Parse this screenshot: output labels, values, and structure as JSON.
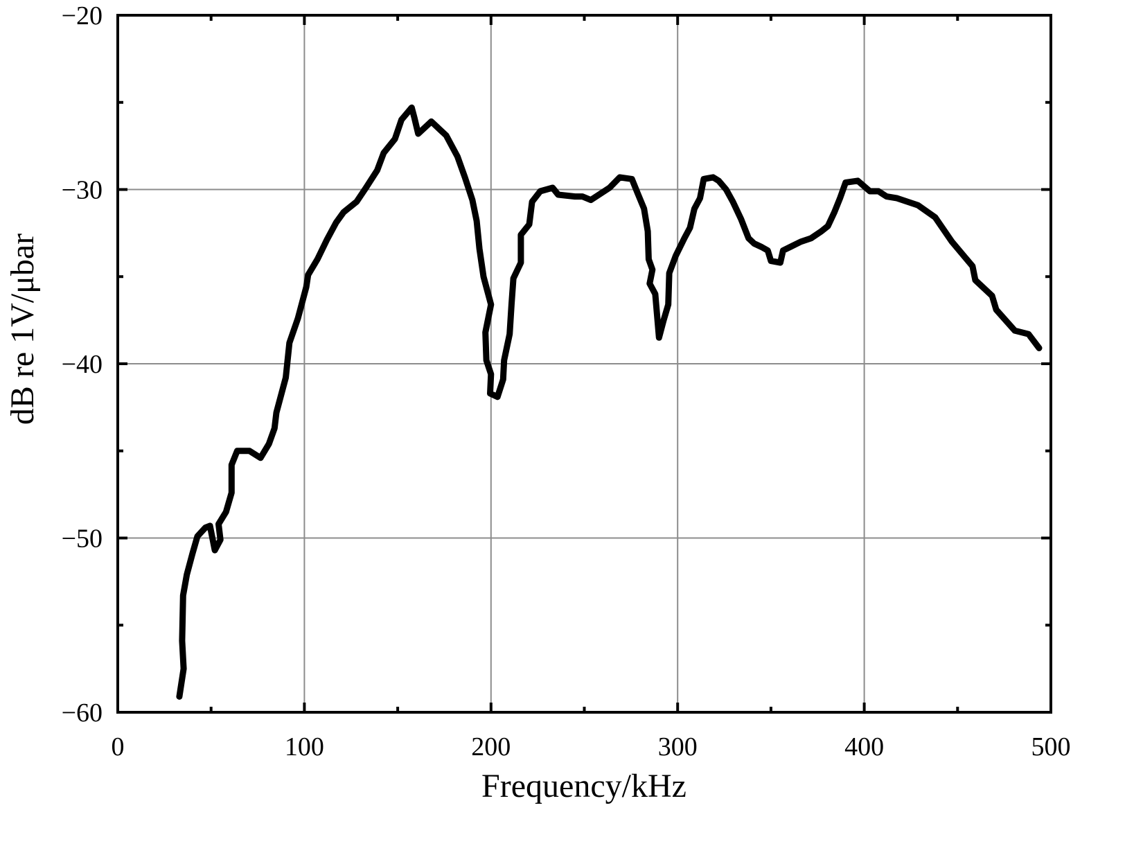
{
  "chart_data": {
    "type": "line",
    "xlabel": "Frequency/kHz",
    "ylabel": "dB re 1V/μbar",
    "xlim": [
      0,
      500
    ],
    "ylim": [
      -60,
      -20
    ],
    "xticks": [
      0,
      100,
      200,
      300,
      400,
      500
    ],
    "yticks": [
      {
        "value": -60,
        "label": "−60"
      },
      {
        "value": -50,
        "label": "−50"
      },
      {
        "value": -40,
        "label": "−40"
      },
      {
        "value": -30,
        "label": "−30"
      },
      {
        "value": -20,
        "label": "−20"
      }
    ],
    "xminorticks": [
      50,
      150,
      250,
      350,
      450
    ],
    "yminorticks": [
      -55,
      -45,
      -35,
      -25
    ],
    "grid": true,
    "color": "#000000",
    "x": [
      33,
      35.3,
      34.5,
      35,
      37,
      40,
      42.7,
      47,
      49.4,
      52,
      55,
      54,
      58,
      61,
      61,
      64,
      70.6,
      76.5,
      81,
      84,
      85,
      90,
      92,
      96.5,
      101,
      102,
      107,
      112,
      117,
      121,
      128,
      133,
      139,
      142.5,
      148.5,
      152,
      157.5,
      159,
      161,
      168,
      176,
      182,
      186,
      190,
      192.3,
      193.8,
      196,
      200,
      197,
      197.5,
      200,
      199.5,
      203.5,
      206.5,
      207,
      210,
      211,
      212,
      216,
      216,
      220.5,
      222,
      226.4,
      233,
      236,
      245,
      249,
      253.5,
      263.5,
      269,
      275.5,
      278.5,
      282,
      284,
      284.5,
      286.5,
      285,
      288,
      290,
      292.5,
      295,
      295.5,
      299,
      303.6,
      306.6,
      309,
      312,
      314,
      319,
      322,
      326,
      329.6,
      334,
      338,
      341,
      345,
      348.3,
      350,
      355,
      356.5,
      366,
      371.5,
      377,
      380.5,
      384,
      387,
      390,
      396.5,
      403,
      407.6,
      412,
      417.6,
      428.7,
      438,
      447,
      458,
      459.5,
      468.5,
      470.7,
      480.7,
      488,
      493.7
    ],
    "values": [
      -59.1,
      -57.5,
      -55.9,
      -53.3,
      -52.1,
      -50.9,
      -49.9,
      -49.4,
      -49.3,
      -50.7,
      -50.1,
      -49.2,
      -48.5,
      -47.4,
      -45.8,
      -45.0,
      -45.0,
      -45.4,
      -44.6,
      -43.7,
      -42.8,
      -40.8,
      -38.8,
      -37.4,
      -35.6,
      -34.9,
      -34.0,
      -32.9,
      -31.9,
      -31.3,
      -30.7,
      -29.9,
      -28.9,
      -27.9,
      -27.1,
      -26.0,
      -25.3,
      -25.9,
      -26.8,
      -26.1,
      -26.9,
      -28.1,
      -29.3,
      -30.6,
      -31.8,
      -33.4,
      -35.0,
      -36.6,
      -38.2,
      -39.8,
      -40.6,
      -41.7,
      -41.9,
      -40.9,
      -39.8,
      -38.3,
      -36.6,
      -35.1,
      -34.2,
      -32.6,
      -32.0,
      -30.7,
      -30.1,
      -29.9,
      -30.3,
      -30.4,
      -30.4,
      -30.6,
      -29.9,
      -29.3,
      -29.4,
      -30.2,
      -31.1,
      -32.4,
      -34.0,
      -34.6,
      -35.4,
      -36.0,
      -38.5,
      -37.5,
      -36.6,
      -34.8,
      -33.8,
      -32.8,
      -32.2,
      -31.1,
      -30.5,
      -29.4,
      -29.3,
      -29.5,
      -30.0,
      -30.7,
      -31.7,
      -32.8,
      -33.1,
      -33.3,
      -33.5,
      -34.1,
      -34.2,
      -33.5,
      -33.0,
      -32.8,
      -32.4,
      -32.1,
      -31.3,
      -30.5,
      -29.6,
      -29.5,
      -30.1,
      -30.1,
      -30.4,
      -30.5,
      -30.9,
      -31.6,
      -33.0,
      -34.4,
      -35.2,
      -36.1,
      -36.9,
      -38.1,
      -38.3,
      -39.1
    ]
  }
}
